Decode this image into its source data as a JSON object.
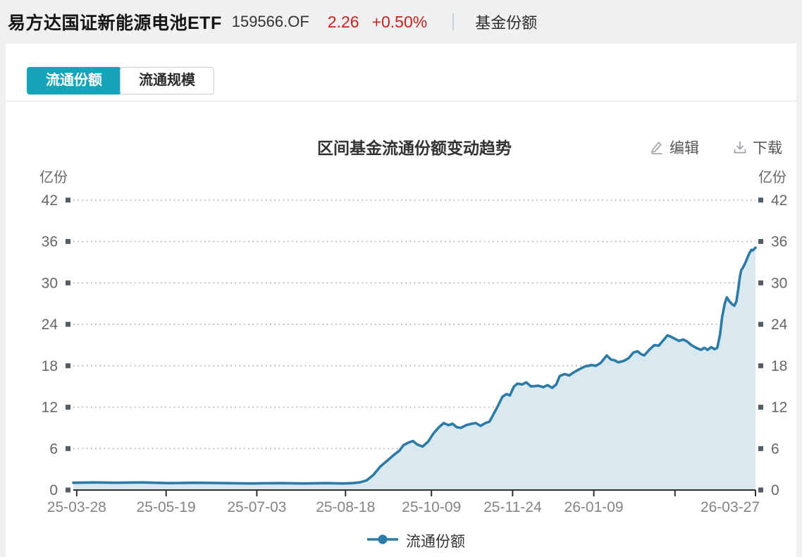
{
  "header": {
    "fund_name": "易方达国证新能源电池ETF",
    "fund_code": "159566.OF",
    "price": "2.26",
    "change_percent": "+0.50%",
    "section_label": "基金份额"
  },
  "tabs": [
    {
      "label": "流通份额",
      "active": true
    },
    {
      "label": "流通规模",
      "active": false
    }
  ],
  "toolbar": {
    "edit_label": "编辑",
    "download_label": "下载"
  },
  "colors": {
    "accent_teal": "#16a4ba",
    "up_red": "#c9211e",
    "series_line": "#2b7ba6",
    "series_fill": "#dae8f0",
    "axis": "#2f2f2f",
    "grid": "#b5b5b5",
    "tick_square": "#555e66",
    "label_gray": "#666666",
    "xlabel_gray": "#848484"
  },
  "chart_data": {
    "type": "area",
    "title": "区间基金流通份额变动趋势",
    "y_unit_left": "亿份",
    "y_unit_right": "亿份",
    "ylim": [
      0,
      45
    ],
    "y_ticks": [
      0,
      6,
      12,
      18,
      24,
      30,
      36,
      42
    ],
    "x_tick_labels": [
      "25-03-28",
      "25-05-19",
      "25-07-03",
      "25-08-18",
      "25-10-09",
      "25-11-24",
      "26-01-09",
      "26-03-27"
    ],
    "grid": "horizontal dotted",
    "legend": [
      {
        "name": "流通份额",
        "color": "#2b7ba6"
      }
    ],
    "series": [
      {
        "name": "流通份额",
        "points": [
          [
            0.0,
            1.05
          ],
          [
            0.03,
            1.1
          ],
          [
            0.06,
            1.05
          ],
          [
            0.1,
            1.1
          ],
          [
            0.14,
            1.0
          ],
          [
            0.18,
            1.05
          ],
          [
            0.22,
            1.0
          ],
          [
            0.26,
            0.95
          ],
          [
            0.3,
            1.0
          ],
          [
            0.34,
            0.95
          ],
          [
            0.37,
            1.0
          ],
          [
            0.395,
            0.95
          ],
          [
            0.41,
            1.0
          ],
          [
            0.42,
            1.1
          ],
          [
            0.43,
            1.4
          ],
          [
            0.44,
            2.2
          ],
          [
            0.45,
            3.4
          ],
          [
            0.462,
            4.4
          ],
          [
            0.47,
            5.1
          ],
          [
            0.478,
            5.7
          ],
          [
            0.484,
            6.5
          ],
          [
            0.492,
            6.9
          ],
          [
            0.498,
            7.1
          ],
          [
            0.504,
            6.6
          ],
          [
            0.512,
            6.3
          ],
          [
            0.52,
            7.0
          ],
          [
            0.528,
            8.2
          ],
          [
            0.535,
            9.0
          ],
          [
            0.543,
            9.7
          ],
          [
            0.55,
            9.4
          ],
          [
            0.556,
            9.6
          ],
          [
            0.562,
            9.1
          ],
          [
            0.568,
            9.0
          ],
          [
            0.576,
            9.4
          ],
          [
            0.584,
            9.6
          ],
          [
            0.59,
            9.7
          ],
          [
            0.597,
            9.3
          ],
          [
            0.604,
            9.7
          ],
          [
            0.61,
            9.9
          ],
          [
            0.615,
            10.8
          ],
          [
            0.621,
            11.9
          ],
          [
            0.629,
            13.5
          ],
          [
            0.635,
            13.9
          ],
          [
            0.64,
            13.7
          ],
          [
            0.646,
            15.0
          ],
          [
            0.651,
            15.4
          ],
          [
            0.658,
            15.3
          ],
          [
            0.664,
            15.6
          ],
          [
            0.671,
            15.0
          ],
          [
            0.682,
            15.1
          ],
          [
            0.689,
            14.9
          ],
          [
            0.695,
            15.2
          ],
          [
            0.702,
            14.8
          ],
          [
            0.708,
            15.3
          ],
          [
            0.713,
            16.5
          ],
          [
            0.72,
            16.8
          ],
          [
            0.727,
            16.6
          ],
          [
            0.733,
            17.0
          ],
          [
            0.74,
            17.4
          ],
          [
            0.75,
            17.9
          ],
          [
            0.76,
            18.1
          ],
          [
            0.766,
            18.0
          ],
          [
            0.773,
            18.4
          ],
          [
            0.782,
            19.5
          ],
          [
            0.788,
            18.9
          ],
          [
            0.793,
            18.8
          ],
          [
            0.799,
            18.5
          ],
          [
            0.807,
            18.7
          ],
          [
            0.814,
            19.1
          ],
          [
            0.821,
            19.9
          ],
          [
            0.827,
            20.1
          ],
          [
            0.832,
            19.7
          ],
          [
            0.837,
            19.5
          ],
          [
            0.845,
            20.4
          ],
          [
            0.852,
            21.0
          ],
          [
            0.858,
            20.9
          ],
          [
            0.865,
            21.7
          ],
          [
            0.871,
            22.4
          ],
          [
            0.876,
            22.2
          ],
          [
            0.882,
            21.9
          ],
          [
            0.888,
            21.6
          ],
          [
            0.894,
            21.8
          ],
          [
            0.9,
            21.5
          ],
          [
            0.906,
            21.0
          ],
          [
            0.913,
            20.6
          ],
          [
            0.92,
            20.3
          ],
          [
            0.925,
            20.6
          ],
          [
            0.93,
            20.3
          ],
          [
            0.935,
            20.7
          ],
          [
            0.94,
            20.4
          ],
          [
            0.944,
            20.6
          ],
          [
            0.948,
            22.5
          ],
          [
            0.951,
            25.0
          ],
          [
            0.955,
            27.0
          ],
          [
            0.958,
            27.9
          ],
          [
            0.962,
            27.3
          ],
          [
            0.966,
            26.9
          ],
          [
            0.969,
            26.7
          ],
          [
            0.972,
            27.3
          ],
          [
            0.975,
            29.3
          ],
          [
            0.977,
            30.8
          ],
          [
            0.979,
            31.8
          ],
          [
            0.982,
            32.3
          ],
          [
            0.985,
            32.9
          ],
          [
            0.988,
            33.6
          ],
          [
            0.991,
            34.3
          ],
          [
            0.994,
            34.8
          ],
          [
            0.996,
            34.7
          ],
          [
            1.0,
            35.1
          ]
        ]
      }
    ]
  }
}
